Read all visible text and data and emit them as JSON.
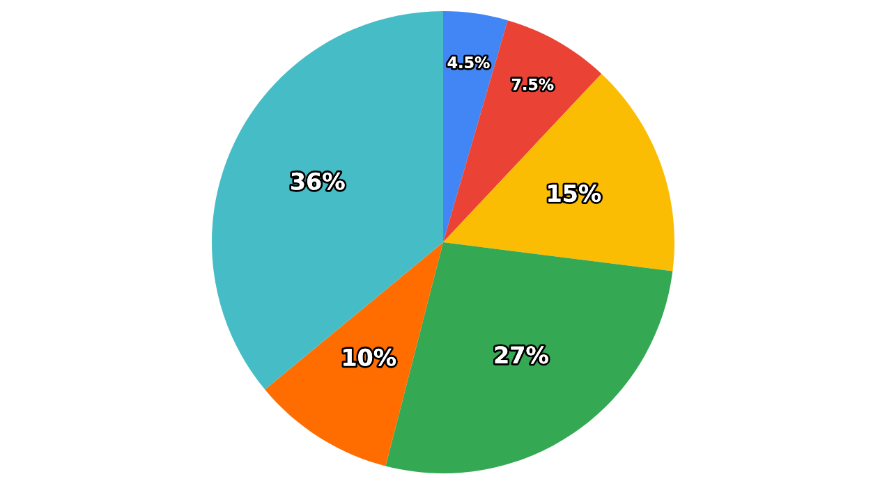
{
  "chart_data": {
    "type": "pie",
    "categories": [
      null,
      null,
      null,
      null,
      null,
      null
    ],
    "values": [
      4.5,
      7.5,
      15,
      27,
      10,
      36
    ],
    "value_labels": [
      "4.5%",
      "7.5%",
      "15%",
      "27%",
      "10%",
      "36%"
    ],
    "colors": [
      "#4285f4",
      "#ea4335",
      "#fbbc04",
      "#34a853",
      "#ff6d01",
      "#46bdc6"
    ],
    "legend": false
  }
}
